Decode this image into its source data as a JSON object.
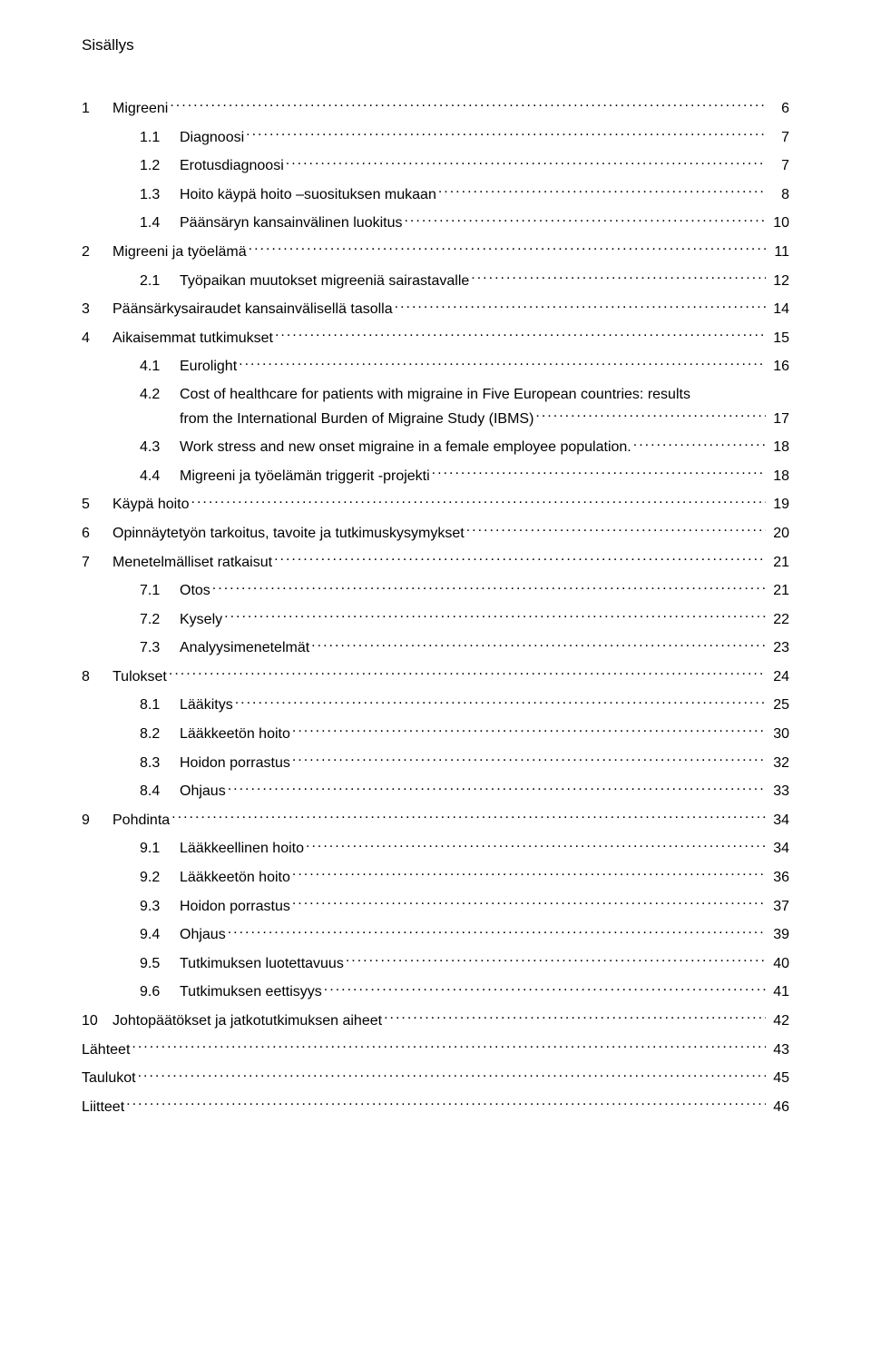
{
  "title": "Sisällys",
  "entries": [
    {
      "level": 1,
      "num": "1",
      "label": "Migreeni",
      "page": "6"
    },
    {
      "level": 2,
      "num": "1.1",
      "label": "Diagnoosi",
      "page": "7"
    },
    {
      "level": 2,
      "num": "1.2",
      "label": "Erotusdiagnoosi",
      "page": "7"
    },
    {
      "level": 2,
      "num": "1.3",
      "label": "Hoito käypä hoito –suosituksen mukaan",
      "page": "8"
    },
    {
      "level": 2,
      "num": "1.4",
      "label": "Päänsäryn kansainvälinen luokitus",
      "page": "10"
    },
    {
      "level": 1,
      "num": "2",
      "label": "Migreeni ja työelämä",
      "page": "11"
    },
    {
      "level": 2,
      "num": "2.1",
      "label": "Työpaikan muutokset migreeniä sairastavalle",
      "page": "12"
    },
    {
      "level": 1,
      "num": "3",
      "label": "Päänsärkysairaudet kansainvälisellä tasolla",
      "page": "14"
    },
    {
      "level": 1,
      "num": "4",
      "label": "Aikaisemmat tutkimukset",
      "page": "15"
    },
    {
      "level": 2,
      "num": "4.1",
      "label": "Eurolight",
      "page": "16"
    },
    {
      "level": 2,
      "num": "4.2",
      "label": "Cost of healthcare for patients with migraine in Five European countries: results",
      "wrap": "from the International Burden of Migraine Study (IBMS)",
      "page": "17"
    },
    {
      "level": 2,
      "num": "4.3",
      "label": "Work stress and new onset migraine in a female employee population. ",
      "page": "18"
    },
    {
      "level": 2,
      "num": "4.4",
      "label": "Migreeni ja työelämän triggerit -projekti",
      "page": "18"
    },
    {
      "level": 1,
      "num": "5",
      "label": "Käypä hoito",
      "page": "19"
    },
    {
      "level": 1,
      "num": "6",
      "label": "Opinnäytetyön tarkoitus, tavoite ja tutkimuskysymykset",
      "page": "20"
    },
    {
      "level": 1,
      "num": "7",
      "label": "Menetelmälliset ratkaisut",
      "page": "21"
    },
    {
      "level": 2,
      "num": "7.1",
      "label": "Otos",
      "page": "21"
    },
    {
      "level": 2,
      "num": "7.2",
      "label": "Kysely",
      "page": "22"
    },
    {
      "level": 2,
      "num": "7.3",
      "label": "Analyysimenetelmät",
      "page": "23"
    },
    {
      "level": 1,
      "num": "8",
      "label": "Tulokset",
      "page": "24"
    },
    {
      "level": 2,
      "num": "8.1",
      "label": "Lääkitys",
      "page": "25"
    },
    {
      "level": 2,
      "num": "8.2",
      "label": "Lääkkeetön hoito",
      "page": "30"
    },
    {
      "level": 2,
      "num": "8.3",
      "label": "Hoidon porrastus",
      "page": "32"
    },
    {
      "level": 2,
      "num": "8.4",
      "label": "Ohjaus",
      "page": "33"
    },
    {
      "level": 1,
      "num": "9",
      "label": "Pohdinta",
      "page": "34"
    },
    {
      "level": 2,
      "num": "9.1",
      "label": "Lääkkeellinen hoito",
      "page": "34"
    },
    {
      "level": 2,
      "num": "9.2",
      "label": "Lääkkeetön hoito",
      "page": "36"
    },
    {
      "level": 2,
      "num": "9.3",
      "label": "Hoidon porrastus",
      "page": "37"
    },
    {
      "level": 2,
      "num": "9.4",
      "label": "Ohjaus",
      "page": "39"
    },
    {
      "level": 2,
      "num": "9.5",
      "label": "Tutkimuksen luotettavuus",
      "page": "40"
    },
    {
      "level": 2,
      "num": "9.6",
      "label": "Tutkimuksen eettisyys",
      "page": "41"
    },
    {
      "level": 1,
      "num": "10",
      "label": "Johtopäätökset ja jatkotutkimuksen aiheet",
      "page": "42"
    },
    {
      "level": 0,
      "num": "",
      "label": "Lähteet",
      "page": "43"
    },
    {
      "level": 0,
      "num": "",
      "label": "Taulukot",
      "page": "45"
    },
    {
      "level": 0,
      "num": "",
      "label": "Liitteet",
      "page": "46"
    }
  ],
  "colors": {
    "text": "#000000",
    "bg": "#ffffff"
  },
  "fontsize_pt": 12
}
